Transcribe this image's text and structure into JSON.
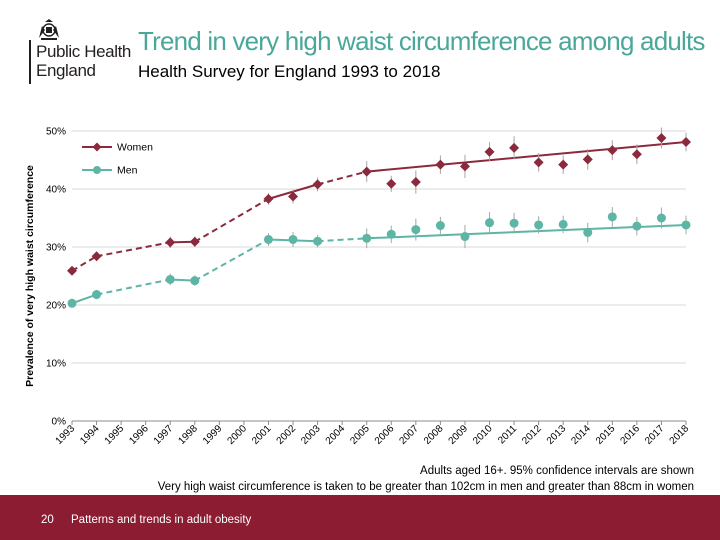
{
  "logo": {
    "line1": "Public Health",
    "line2": "England"
  },
  "header": {
    "title": "Trend in very high waist circumference among adults",
    "subtitle": "Health Survey for England 1993 to 2018"
  },
  "notes": [
    "Adults aged 16+.  95% confidence intervals are shown",
    "Very high waist circumference is taken to be greater than 102cm in men and greater than 88cm in women"
  ],
  "footer": {
    "page_number": "20",
    "title": "Patterns and trends in adult obesity"
  },
  "colors": {
    "women": "#8b2a3d",
    "men": "#5db5a5",
    "title": "#4aa89a",
    "footer": "#8b1c31"
  },
  "chart_data": {
    "type": "line",
    "ylabel": "Prevalence of very high waist circumference",
    "ylim": [
      0,
      50
    ],
    "yticks": [
      "0%",
      "10%",
      "20%",
      "30%",
      "40%",
      "50%"
    ],
    "categories": [
      "1993",
      "1994",
      "1995",
      "1996",
      "1997",
      "1998",
      "1999",
      "2000",
      "2001",
      "2002",
      "2003",
      "2004",
      "2005",
      "2006",
      "2007",
      "2008",
      "2009",
      "2010",
      "2011",
      "2012",
      "2013",
      "2014",
      "2015",
      "2016",
      "2017",
      "2018"
    ],
    "legend_position": "top-left",
    "series": [
      {
        "name": "Women",
        "values": [
          25.9,
          28.4,
          null,
          null,
          30.8,
          30.9,
          null,
          null,
          38.3,
          38.7,
          40.8,
          null,
          43.0,
          40.9,
          41.2,
          44.2,
          43.9,
          46.4,
          47.1,
          44.6,
          44.2,
          45.1,
          46.7,
          46.0,
          48.8,
          48.1
        ],
        "ci_low": [
          25.1,
          27.6,
          null,
          null,
          29.8,
          30.0,
          null,
          null,
          37.3,
          37.5,
          39.6,
          null,
          41.2,
          39.5,
          39.2,
          42.6,
          41.9,
          44.7,
          45.1,
          43.0,
          42.6,
          43.3,
          45.0,
          44.3,
          47.0,
          46.5
        ],
        "ci_high": [
          26.7,
          29.2,
          null,
          null,
          31.8,
          31.8,
          null,
          null,
          39.3,
          39.9,
          42.0,
          null,
          44.8,
          42.3,
          43.2,
          45.8,
          45.9,
          48.1,
          49.1,
          46.2,
          45.8,
          46.9,
          48.4,
          47.7,
          50.6,
          49.7
        ],
        "segments": [
          [
            0,
            1,
            "dashed"
          ],
          [
            1,
            4,
            "dashed"
          ],
          [
            4,
            5,
            "solid"
          ],
          [
            5,
            8,
            "dashed"
          ],
          [
            8,
            10,
            "solid"
          ],
          [
            10,
            12,
            "dashed"
          ],
          [
            12,
            25,
            "solid"
          ]
        ]
      },
      {
        "name": "Men",
        "values": [
          20.3,
          21.8,
          null,
          null,
          24.4,
          24.2,
          null,
          null,
          31.3,
          31.3,
          31.0,
          null,
          31.5,
          32.2,
          33.0,
          33.7,
          31.8,
          34.2,
          34.1,
          33.8,
          33.9,
          32.5,
          35.2,
          33.6,
          35.0,
          33.8
        ],
        "ci_low": [
          19.6,
          21.0,
          null,
          null,
          23.4,
          23.3,
          null,
          null,
          30.2,
          30.0,
          29.9,
          null,
          29.8,
          30.7,
          31.1,
          32.2,
          29.8,
          32.4,
          32.3,
          32.3,
          32.4,
          30.8,
          33.5,
          32.0,
          33.2,
          32.2
        ],
        "ci_high": [
          21.0,
          22.6,
          null,
          null,
          25.4,
          25.1,
          null,
          null,
          32.4,
          32.6,
          32.1,
          null,
          33.2,
          33.7,
          34.9,
          35.2,
          33.8,
          36.0,
          35.9,
          35.3,
          35.4,
          34.2,
          36.9,
          35.2,
          36.8,
          35.4
        ],
        "segments": [
          [
            0,
            1,
            "solid"
          ],
          [
            1,
            4,
            "dashed"
          ],
          [
            4,
            5,
            "solid"
          ],
          [
            5,
            8,
            "dashed"
          ],
          [
            8,
            10,
            "solid"
          ],
          [
            10,
            12,
            "dashed"
          ],
          [
            12,
            25,
            "solid"
          ]
        ]
      }
    ]
  }
}
